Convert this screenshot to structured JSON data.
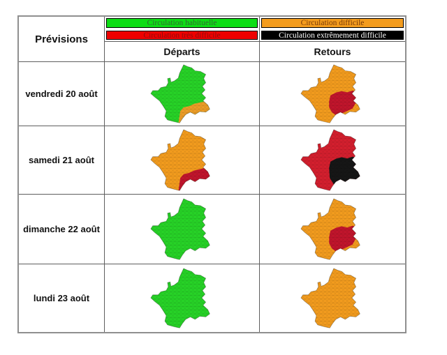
{
  "table": {
    "corner_label": "Prévisions",
    "legend": [
      {
        "label": "Circulation habituelle",
        "color": "#0ddd15",
        "text_color": "#336633"
      },
      {
        "label": "Circulation difficile",
        "color": "#f39c1e",
        "text_color": "#7a3a08"
      },
      {
        "label": "Circulation très difficile",
        "color": "#ee0000",
        "text_color": "#8e0d0d"
      },
      {
        "label": "Circulation extrêmement difficile",
        "color": "#000000",
        "text_color": "#ffffff"
      }
    ],
    "columns": [
      "Départs",
      "Retours"
    ],
    "rows": [
      {
        "label": "vendredi 20 août",
        "departs": {
          "base_color": "#27d327",
          "region": "southeast",
          "region_color": "#ec9d27"
        },
        "retours": {
          "base_color": "#f39c1e",
          "region": "rhone-alpes",
          "region_color": "#c1152c"
        }
      },
      {
        "label": "samedi 21 août",
        "departs": {
          "base_color": "#f39c1e",
          "region": "southeast",
          "region_color": "#c1152c"
        },
        "retours": {
          "base_color": "#d41f2e",
          "region": "southeast-large",
          "region_color": "#161616"
        }
      },
      {
        "label": "dimanche 22 août",
        "departs": {
          "base_color": "#27d327",
          "region": "none",
          "region_color": ""
        },
        "retours": {
          "base_color": "#f39c1e",
          "region": "rhone-alpes",
          "region_color": "#c1152c"
        }
      },
      {
        "label": "lundi 23 août",
        "departs": {
          "base_color": "#27d327",
          "region": "none",
          "region_color": ""
        },
        "retours": {
          "base_color": "#f39c1e",
          "region": "none",
          "region_color": ""
        }
      }
    ]
  }
}
